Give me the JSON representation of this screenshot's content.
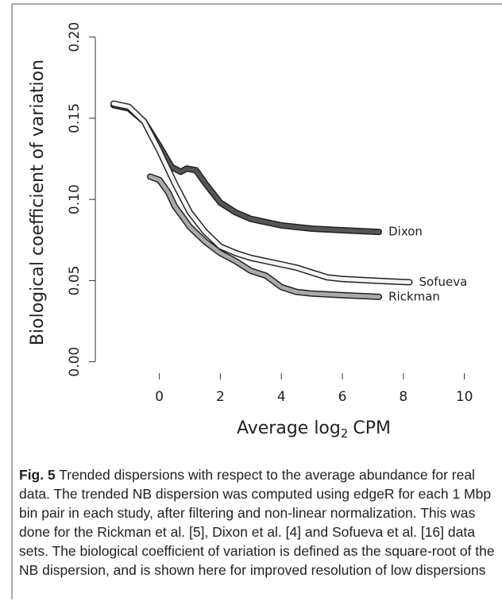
{
  "chart_data": {
    "type": "line",
    "x_label_parts": [
      "Average log",
      "2",
      "CPM"
    ],
    "y_label": "Biological coefficient of variation",
    "xlim": [
      -2.1,
      10.4
    ],
    "ylim": [
      -0.007,
      0.214
    ],
    "xticks": [
      0,
      2,
      4,
      6,
      8,
      10
    ],
    "yticks": [
      {
        "value": 0,
        "label": "0.00"
      },
      {
        "value": 0.05,
        "label": "0.05"
      },
      {
        "value": 0.1,
        "label": "0.10"
      },
      {
        "value": 0.15,
        "label": "0.15"
      },
      {
        "value": 0.2,
        "label": "0.20"
      }
    ],
    "series": [
      {
        "name": "Dixon",
        "color": "#555555",
        "x": [
          -1.5,
          -1,
          -0.5,
          0,
          0.4,
          0.7,
          0.9,
          1.2,
          1.5,
          2,
          2.5,
          3,
          3.5,
          4,
          5,
          6,
          7.2
        ],
        "values": [
          0.158,
          0.156,
          0.148,
          0.133,
          0.12,
          0.117,
          0.119,
          0.118,
          0.11,
          0.098,
          0.092,
          0.088,
          0.086,
          0.084,
          0.082,
          0.081,
          0.08
        ]
      },
      {
        "name": "Sofueva",
        "color": "#f4f4f4",
        "x": [
          -1.5,
          -1,
          -0.5,
          0,
          0.5,
          1,
          1.5,
          2,
          2.5,
          3,
          3.5,
          4,
          4.5,
          5,
          5.5,
          6,
          7,
          8.2
        ],
        "values": [
          0.159,
          0.157,
          0.148,
          0.13,
          0.11,
          0.092,
          0.08,
          0.071,
          0.067,
          0.064,
          0.062,
          0.06,
          0.058,
          0.055,
          0.052,
          0.051,
          0.05,
          0.049
        ]
      },
      {
        "name": "Rickman",
        "color": "#aaaaaa",
        "x": [
          -0.3,
          0,
          0.3,
          0.5,
          1,
          1.5,
          2,
          2.5,
          3,
          3.5,
          4,
          4.5,
          5,
          6,
          7.2
        ],
        "values": [
          0.114,
          0.112,
          0.104,
          0.096,
          0.083,
          0.074,
          0.067,
          0.062,
          0.056,
          0.053,
          0.046,
          0.043,
          0.042,
          0.041,
          0.04
        ]
      }
    ],
    "caption_label": "Fig. 5",
    "caption": "Trended dispersions with respect to the average abundance for real data. The trended NB dispersion was computed using edgeR for each 1 Mbp bin pair in each study, after filtering and non-linear normalization. This was done for the Rickman et al. [5], Dixon et al. [4] and Sofueva et al. [16] data sets. The biological coefficient of variation is defined as the square-root of the NB dispersion, and is shown here for improved resolution of low dispersions"
  }
}
